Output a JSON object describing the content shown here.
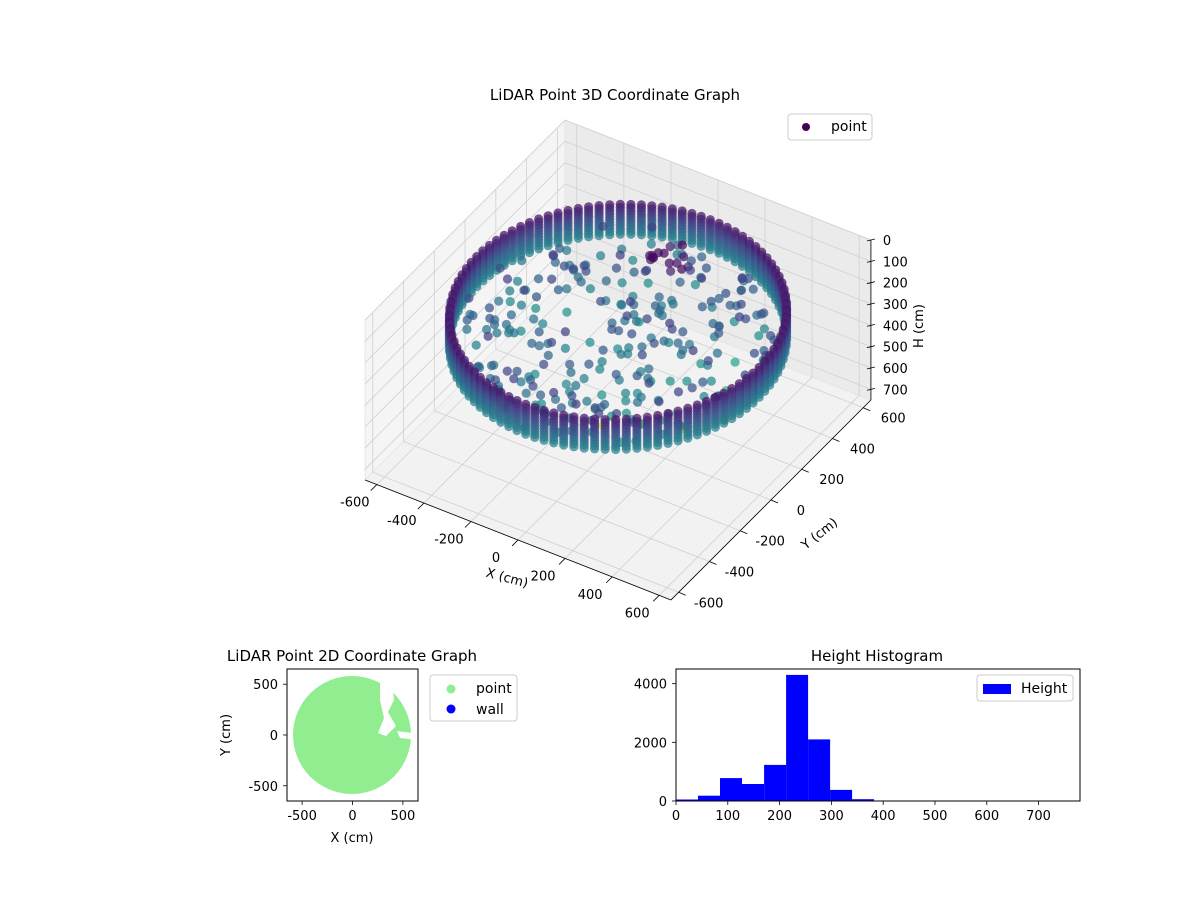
{
  "chart_data": [
    {
      "type": "scatter",
      "projection": "3d",
      "title": "LiDAR Point 3D Coordinate Graph",
      "xlabel": "X (cm)",
      "ylabel": "Y (cm)",
      "zlabel": "H (cm)",
      "xlim": [
        -650,
        650
      ],
      "ylim": [
        -650,
        650
      ],
      "zlim": [
        750,
        0
      ],
      "x_ticks": [
        -600,
        -400,
        -200,
        0,
        200,
        400,
        600
      ],
      "y_ticks": [
        -600,
        -400,
        -200,
        0,
        200,
        400,
        600
      ],
      "z_ticks": [
        0,
        100,
        200,
        300,
        400,
        500,
        600,
        700
      ],
      "grid": true,
      "colormap": "viridis",
      "legend": {
        "location": "upper-right",
        "entries": [
          {
            "label": "point",
            "color": "#440154"
          }
        ]
      },
      "series": [
        {
          "name": "point",
          "description_shape": "ring wall of radius ~600 cm spanning heights 150-290 cm, plus interior clutter",
          "wall_radius": 600,
          "wall_height_range": [
            150,
            290
          ],
          "interior_points": [
            {
              "x": -200,
              "y": 320,
              "h": 200
            },
            {
              "x": -80,
              "y": 300,
              "h": 210
            },
            {
              "x": 50,
              "y": 380,
              "h": 190
            },
            {
              "x": 120,
              "y": 360,
              "h": 200
            },
            {
              "x": 200,
              "y": 300,
              "h": 230
            },
            {
              "x": -300,
              "y": 200,
              "h": 260
            },
            {
              "x": -150,
              "y": 150,
              "h": 270
            },
            {
              "x": 0,
              "y": 120,
              "h": 280
            },
            {
              "x": 150,
              "y": 100,
              "h": 300
            },
            {
              "x": 300,
              "y": 80,
              "h": 320
            },
            {
              "x": 420,
              "y": 60,
              "h": 380
            },
            {
              "x": 480,
              "y": -40,
              "h": 420
            },
            {
              "x": 350,
              "y": -120,
              "h": 460
            },
            {
              "x": 200,
              "y": -150,
              "h": 480
            },
            {
              "x": 80,
              "y": -220,
              "h": 490
            },
            {
              "x": -100,
              "y": 250,
              "h": 300
            },
            {
              "x": 260,
              "y": 220,
              "h": 250
            },
            {
              "x": 380,
              "y": 180,
              "h": 350
            }
          ]
        }
      ]
    },
    {
      "type": "scatter",
      "title": "LiDAR Point 2D Coordinate Graph",
      "xlabel": "X (cm)",
      "ylabel": "Y (cm)",
      "xlim": [
        -650,
        650
      ],
      "ylim": [
        -650,
        650
      ],
      "x_ticks": [
        -500,
        0,
        500
      ],
      "y_ticks": [
        -500,
        0,
        500
      ],
      "legend": {
        "location": "outside-right",
        "entries": [
          {
            "label": "point",
            "color": "#90ee90"
          },
          {
            "label": "wall",
            "color": "#0000ff"
          }
        ]
      },
      "series": [
        {
          "name": "point",
          "color": "#90ee90",
          "shape": "filled disk of radius ~600 cm with small gaps near x 300-600, y -50 to 500"
        },
        {
          "name": "wall",
          "color": "#0000ff",
          "values": []
        }
      ]
    },
    {
      "type": "bar",
      "title": "Height Histogram",
      "xlabel": "",
      "ylabel": "",
      "xlim": [
        0,
        780
      ],
      "ylim": [
        0,
        4500
      ],
      "x_ticks": [
        0,
        100,
        200,
        300,
        400,
        500,
        600,
        700
      ],
      "y_ticks": [
        0,
        2000,
        4000
      ],
      "bin_width": 42.5,
      "bin_edges_start": 0,
      "values": [
        50,
        180,
        780,
        580,
        1230,
        4300,
        2100,
        380,
        60,
        15,
        8,
        5,
        5,
        4,
        4,
        3,
        2,
        2
      ],
      "legend": {
        "location": "upper-right",
        "entries": [
          {
            "label": "Height",
            "color": "#0000ff"
          }
        ]
      },
      "series": [
        {
          "name": "Height",
          "color": "#0000ff"
        }
      ]
    }
  ]
}
